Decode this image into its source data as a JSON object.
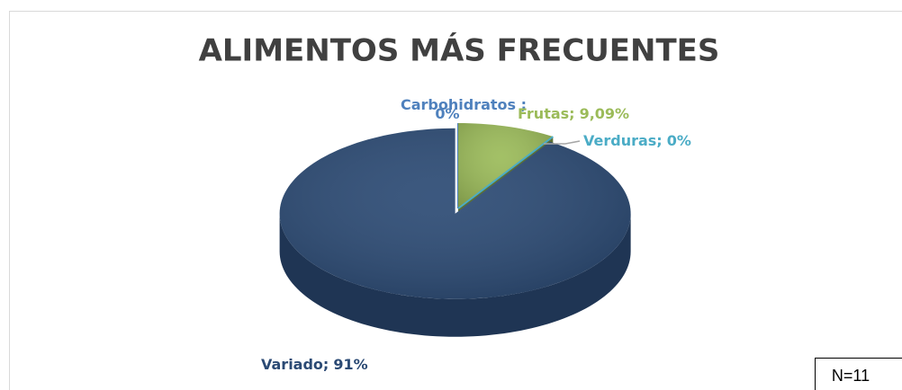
{
  "chart_data": {
    "type": "pie3d",
    "title": "ALIMENTOS MÁS FRECUENTES",
    "categories": [
      "Carbohidratos ;",
      "Frutas;",
      "Verduras;",
      "Variado;"
    ],
    "values": [
      0,
      9.09,
      0,
      91
    ],
    "value_labels": [
      "0%",
      "9,09%",
      "0%",
      "91%"
    ],
    "colors": [
      "#4f81bd",
      "#9bbb59",
      "#4bacc6",
      "#2b4a74"
    ],
    "annotation": "N=11"
  }
}
